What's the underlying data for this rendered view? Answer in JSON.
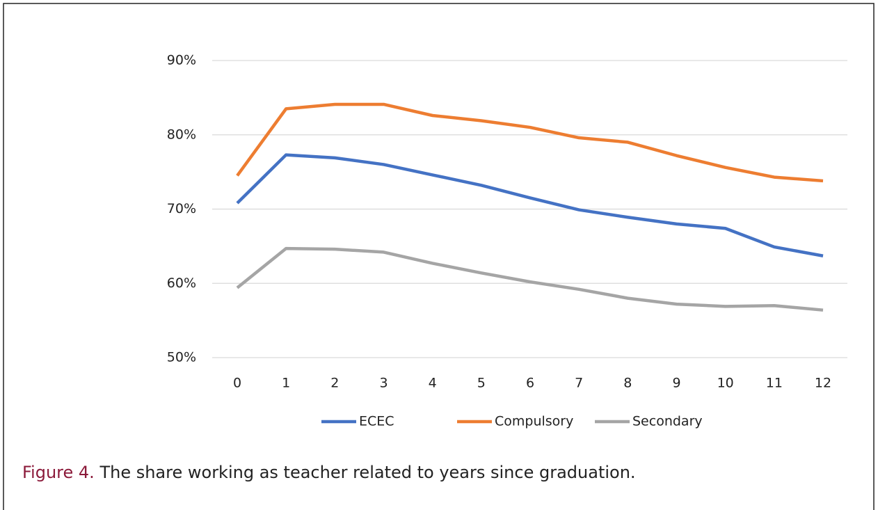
{
  "chart_data": {
    "type": "line",
    "categories": [
      "0",
      "1",
      "2",
      "3",
      "4",
      "5",
      "6",
      "7",
      "8",
      "9",
      "10",
      "11",
      "12"
    ],
    "ylim": [
      50,
      90
    ],
    "yticks": [
      {
        "value": 50,
        "label": "50%"
      },
      {
        "value": 60,
        "label": "60%"
      },
      {
        "value": 70,
        "label": "70%"
      },
      {
        "value": 80,
        "label": "80%"
      },
      {
        "value": 90,
        "label": "90%"
      }
    ],
    "grid": true,
    "legend": "bottom",
    "series": [
      {
        "name": "ECEC",
        "color": "#4472c4",
        "values": [
          70.8,
          77.3,
          76.9,
          76.0,
          74.6,
          73.2,
          71.5,
          69.9,
          68.9,
          68.0,
          67.4,
          64.9,
          63.7
        ]
      },
      {
        "name": "Compulsory",
        "color": "#ed7d31",
        "values": [
          74.5,
          83.5,
          84.1,
          84.1,
          82.6,
          81.9,
          81.0,
          79.6,
          79.0,
          77.2,
          75.6,
          74.3,
          73.8
        ]
      },
      {
        "name": "Secondary",
        "color": "#a5a5a5",
        "values": [
          59.4,
          64.7,
          64.6,
          64.2,
          62.7,
          61.4,
          60.2,
          59.2,
          58.0,
          57.2,
          56.9,
          57.0,
          56.4
        ]
      }
    ],
    "caption_label": "Figure 4.",
    "caption_text": "The share working as teacher related to years since graduation."
  }
}
